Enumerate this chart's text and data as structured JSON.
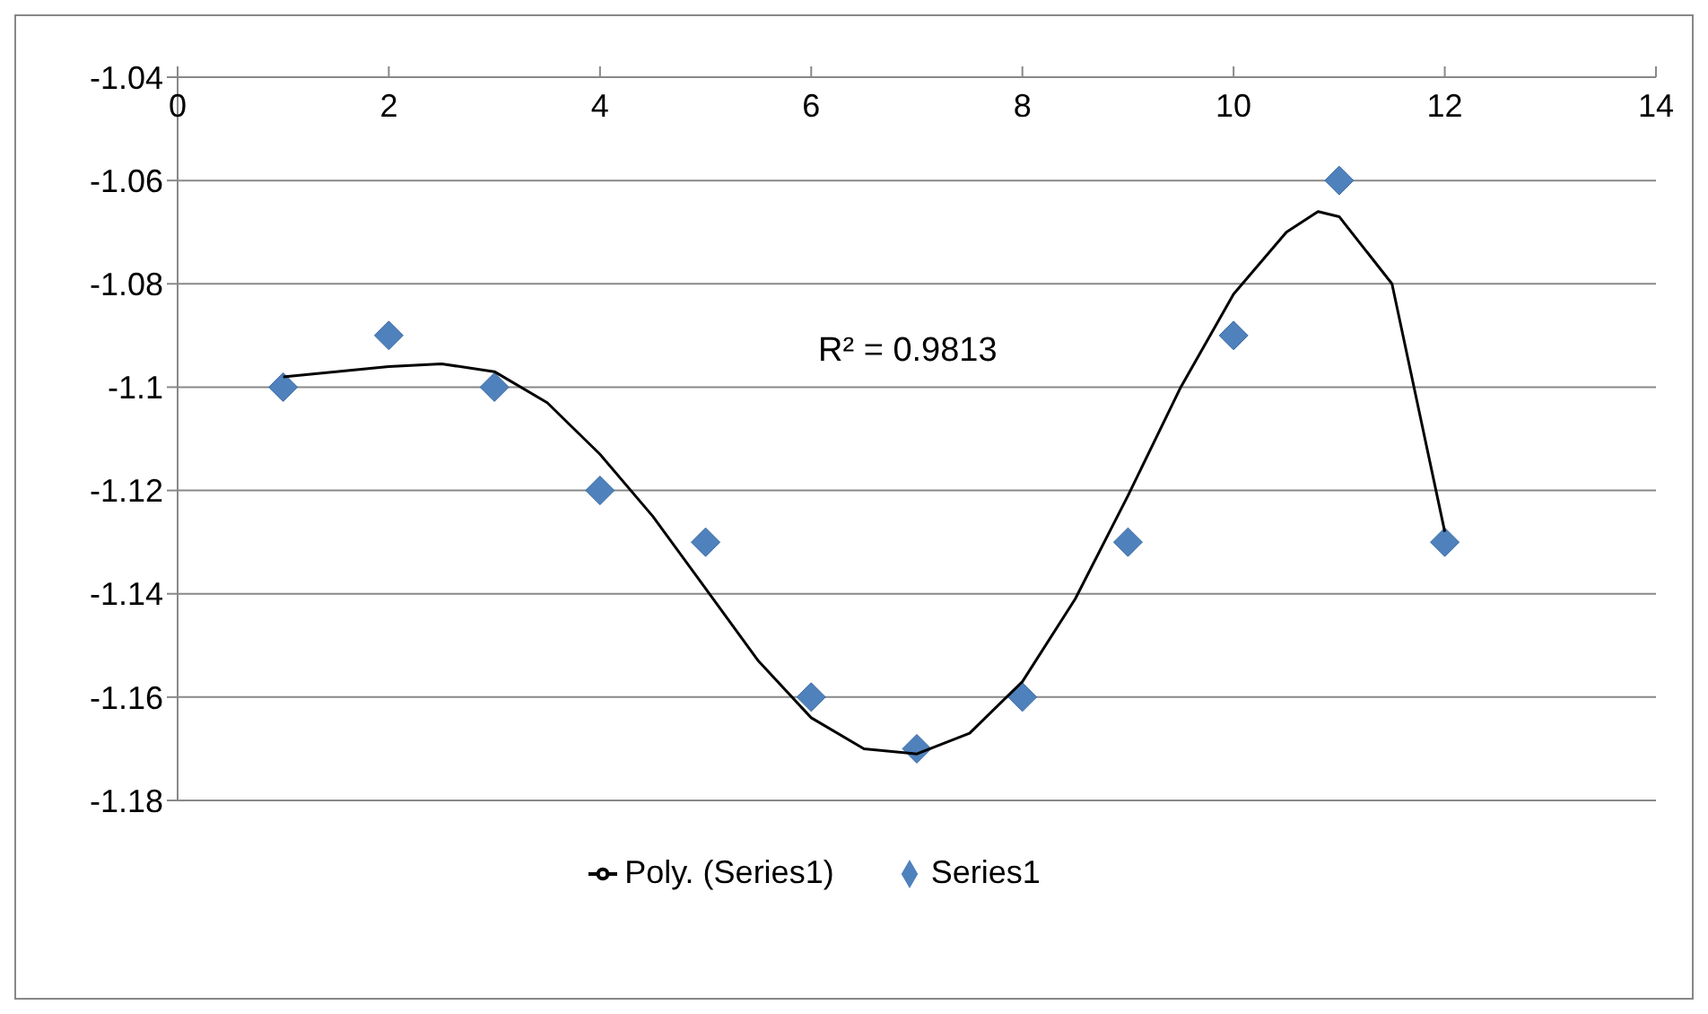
{
  "chart_data": {
    "type": "scatter",
    "x": [
      1,
      2,
      3,
      4,
      5,
      6,
      7,
      8,
      9,
      10,
      11,
      12
    ],
    "series": [
      {
        "name": "Series1",
        "color": "#4f81bd",
        "marker": "diamond",
        "values": [
          -1.1,
          -1.09,
          -1.1,
          -1.12,
          -1.13,
          -1.16,
          -1.17,
          -1.16,
          -1.13,
          -1.09,
          -1.06,
          -1.13
        ]
      },
      {
        "name": "Poly. (Series1)",
        "type": "line",
        "color": "#000000",
        "marker": "none",
        "line_style": "solid",
        "x": [
          1,
          1.5,
          2,
          2.5,
          3,
          3.5,
          4,
          4.5,
          5,
          5.5,
          6,
          6.5,
          7,
          7.5,
          8,
          8.5,
          9,
          9.5,
          10,
          10.5,
          10.8,
          11,
          11.5,
          12
        ],
        "values": [
          -1.098,
          -1.097,
          -1.096,
          -1.0955,
          -1.097,
          -1.103,
          -1.113,
          -1.125,
          -1.139,
          -1.153,
          -1.164,
          -1.17,
          -1.171,
          -1.167,
          -1.157,
          -1.141,
          -1.121,
          -1.1,
          -1.082,
          -1.07,
          -1.066,
          -1.067,
          -1.08,
          -1.128
        ]
      }
    ],
    "xlim": [
      0,
      14
    ],
    "xticks": [
      0,
      2,
      4,
      6,
      8,
      10,
      12,
      14
    ],
    "ylim": [
      -1.18,
      -1.04
    ],
    "yticks": [
      -1.18,
      -1.16,
      -1.14,
      -1.12,
      -1.1,
      -1.08,
      -1.06,
      -1.04
    ],
    "grid": "y",
    "legend": "bottom",
    "annotations": [
      "R² = 0.9813"
    ]
  }
}
